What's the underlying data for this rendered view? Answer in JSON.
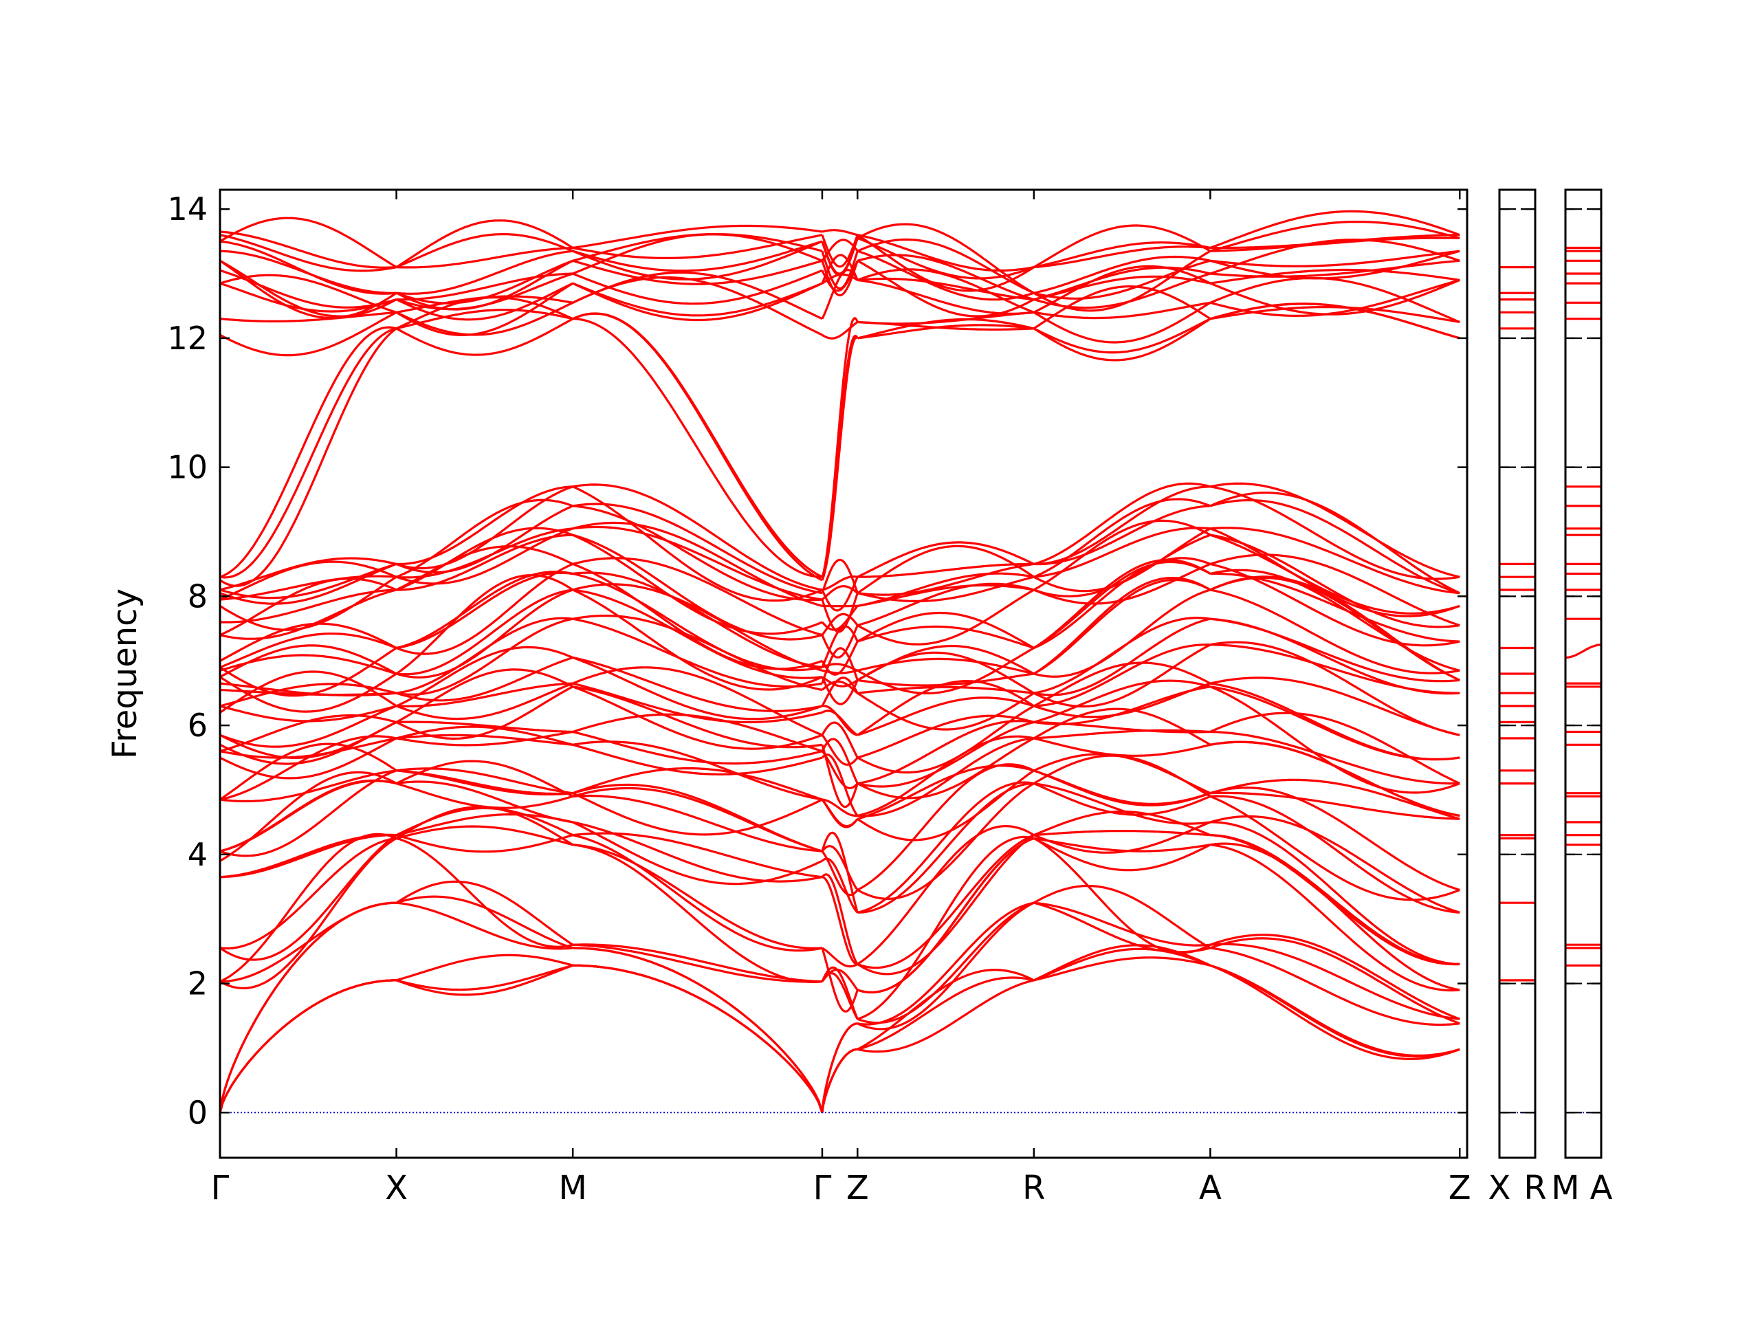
{
  "chart_data": {
    "type": "line",
    "title": "",
    "ylabel": "Frequency",
    "ylim": [
      -0.7,
      14.3
    ],
    "yticks": [
      0,
      2,
      4,
      6,
      8,
      10,
      12,
      14
    ],
    "ytick_labels": [
      "0",
      "2",
      "4",
      "6",
      "8",
      "10",
      "12",
      "14"
    ],
    "zero_line": 0,
    "colors": {
      "bands": "#ff0000",
      "zero_line": "#0000cc",
      "frame": "#000000"
    },
    "band_count": 60,
    "panels": [
      {
        "name": "main-path",
        "xlim": [
          0,
          3.535
        ],
        "ticks": [
          {
            "x": 0.0,
            "label": "Γ"
          },
          {
            "x": 0.5,
            "label": "X"
          },
          {
            "x": 1.0,
            "label": "M"
          },
          {
            "x": 1.707,
            "label": "Γ"
          },
          {
            "x": 1.807,
            "label": "Z"
          },
          {
            "x": 2.307,
            "label": "R"
          },
          {
            "x": 2.807,
            "label": "A"
          },
          {
            "x": 3.514,
            "label": "Z"
          }
        ]
      },
      {
        "name": "x-r-segment",
        "xlim": [
          0,
          0.1
        ],
        "ticks": [
          {
            "x": 0.0,
            "label": "X"
          },
          {
            "x": 0.1,
            "label": "R"
          }
        ]
      },
      {
        "name": "m-a-segment",
        "xlim": [
          0,
          0.1
        ],
        "ticks": [
          {
            "x": 0.0,
            "label": "M"
          },
          {
            "x": 0.1,
            "label": "A"
          }
        ]
      }
    ],
    "high_symmetry_values": {
      "Γ": [
        0,
        0,
        0,
        2.03,
        2.03,
        2.55,
        2.55,
        3.65,
        3.9,
        4.05,
        4.05,
        4.85,
        4.85,
        5.5,
        5.6,
        5.7,
        5.85,
        6.2,
        6.3,
        6.55,
        6.65,
        6.75,
        6.85,
        6.9,
        7.0,
        7.4,
        7.6,
        7.85,
        7.95,
        8.05,
        8.1,
        8.25,
        8.3,
        12.05,
        12.3,
        12.85,
        13.05,
        13.2,
        13.35,
        13.5,
        13.6,
        13.65
      ],
      "X": [
        2.05,
        3.25,
        4.25,
        4.3,
        5.1,
        5.3,
        5.8,
        6.05,
        6.3,
        6.5,
        6.8,
        7.2,
        8.1,
        8.3,
        8.5,
        12.15,
        12.4,
        12.6,
        12.7,
        13.1
      ],
      "M": [
        2.28,
        2.55,
        2.6,
        4.15,
        4.3,
        4.5,
        4.9,
        4.95,
        5.7,
        5.9,
        6.6,
        6.65,
        7.05,
        7.65,
        8.1,
        8.35,
        8.5,
        8.95,
        9.05,
        9.4,
        9.7,
        12.3,
        12.55,
        12.85,
        13.0,
        13.2,
        13.35,
        13.4
      ],
      "Z": [
        0.98,
        1.38,
        1.45,
        1.9,
        2.3,
        3.1,
        3.45,
        4.55,
        4.6,
        5.1,
        5.5,
        5.85,
        6.5,
        6.7,
        6.85,
        7.3,
        7.55,
        7.85,
        8.05,
        8.3,
        12.0,
        12.25,
        12.9,
        13.2,
        13.35,
        13.55,
        13.6
      ],
      "R": [
        2.05,
        3.25,
        4.25,
        4.3,
        5.1,
        5.3,
        5.8,
        6.05,
        6.3,
        6.5,
        6.8,
        7.2,
        8.1,
        8.3,
        8.5,
        12.15,
        12.4,
        12.6,
        12.7,
        13.1
      ],
      "A": [
        2.28,
        2.55,
        2.6,
        4.15,
        4.3,
        4.5,
        4.9,
        4.95,
        5.7,
        5.9,
        6.6,
        6.65,
        7.25,
        7.65,
        8.1,
        8.35,
        8.5,
        8.95,
        9.05,
        9.4,
        9.7,
        12.3,
        12.55,
        12.85,
        13.0,
        13.2,
        13.35,
        13.4
      ]
    }
  }
}
